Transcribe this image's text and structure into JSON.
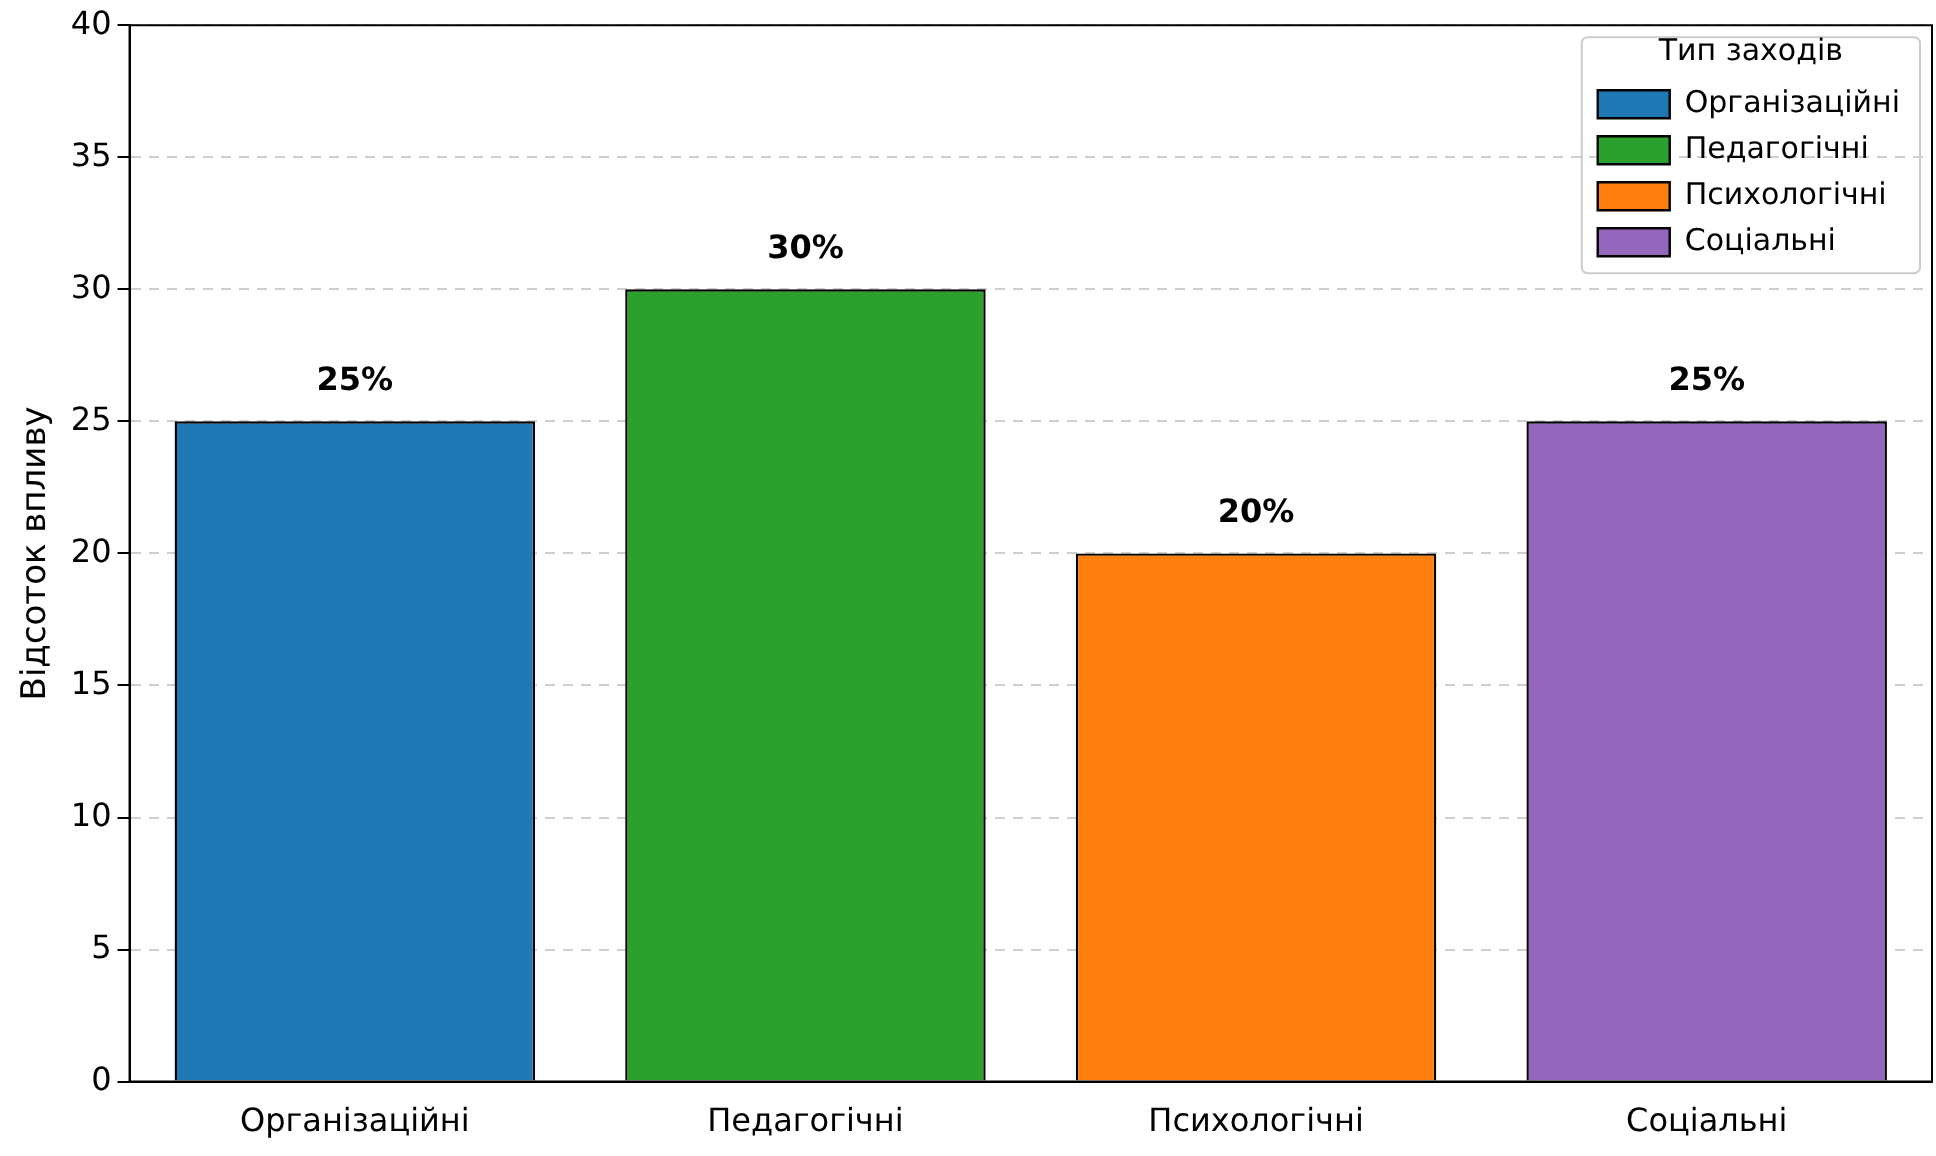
{
  "chart_data": {
    "type": "bar",
    "ylabel": "Відсоток впливу",
    "legend_title": "Тип заходів",
    "categories": [
      "Організаційні",
      "Педагогічні",
      "Психологічні",
      "Соціальні"
    ],
    "series": [
      {
        "name": "Організаційні",
        "color": "#1f77b4",
        "values": [
          25,
          null,
          null,
          null
        ],
        "value_labels": [
          "25%",
          null,
          null,
          null
        ]
      },
      {
        "name": "Педагогічні",
        "color": "#2ca02c",
        "values": [
          null,
          30,
          null,
          null
        ],
        "value_labels": [
          null,
          "30%",
          null,
          null
        ]
      },
      {
        "name": "Психологічні",
        "color": "#ff7f0e",
        "values": [
          null,
          null,
          20,
          null
        ],
        "value_labels": [
          null,
          null,
          "20%",
          null
        ]
      },
      {
        "name": "Соціальні",
        "color": "#9467bd",
        "values": [
          null,
          null,
          null,
          25
        ],
        "value_labels": [
          null,
          null,
          null,
          "25%"
        ]
      }
    ],
    "ylim": [
      0,
      40
    ],
    "yticks": [
      0,
      5,
      10,
      15,
      20,
      25,
      30,
      35,
      40
    ],
    "grid": "y",
    "legend": "top right"
  }
}
